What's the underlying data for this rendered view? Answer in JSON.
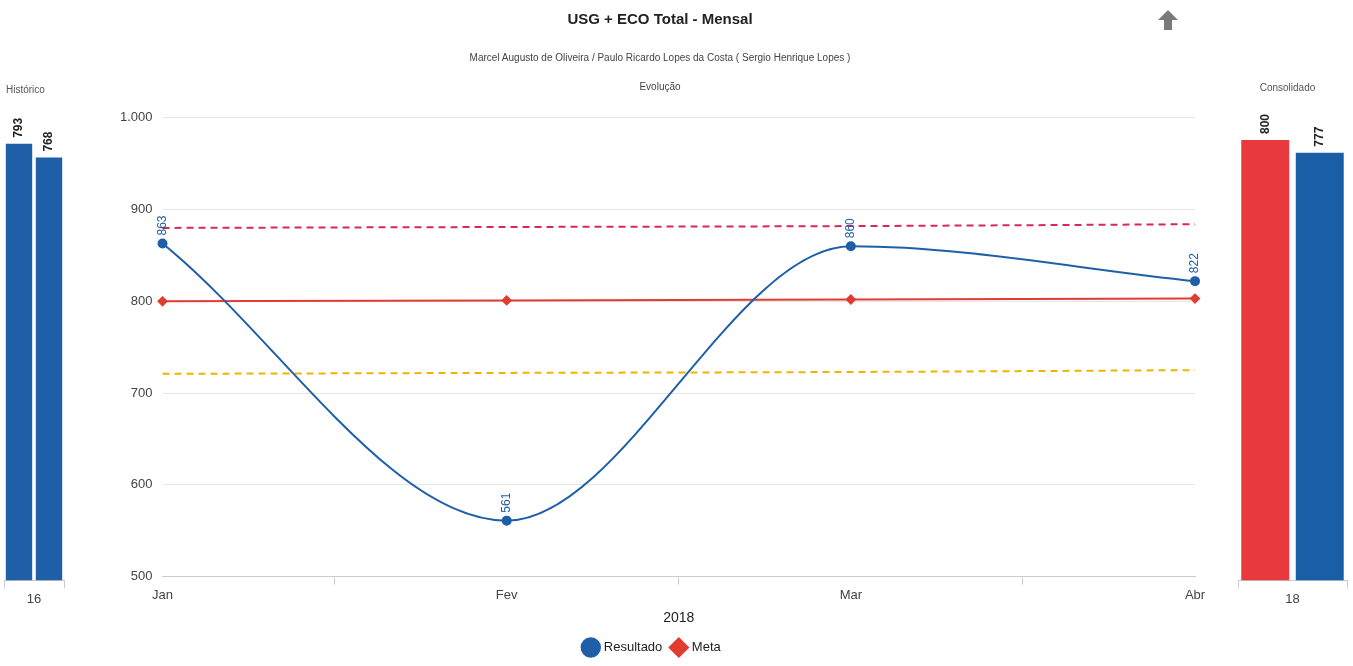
{
  "chart_data": [
    {
      "type": "bar",
      "title": "Histórico",
      "categories": [
        "16"
      ],
      "series": [
        {
          "color": "#1f5fa8",
          "values": [
            793
          ]
        },
        {
          "color": "#1f5fa8",
          "values": [
            768
          ]
        }
      ],
      "data_labels": true,
      "grid": false,
      "tick_labels": "x",
      "legend": false
    },
    {
      "type": "line",
      "title": "USG + ECO Total - Mensal",
      "subtitle": "Marcel Augusto de Oliveira / Paulo Ricardo Lopes da Costa ( Sergio Henrique Lopes )",
      "annotations": [
        "Evolução"
      ],
      "xlabel": "2018",
      "categories": [
        "Jan",
        "Fev",
        "Mar",
        "Abr"
      ],
      "series": [
        {
          "name": "Resultado",
          "color": "#1f5fa8",
          "values": [
            863,
            561,
            860,
            822
          ],
          "value_labels": [
            "863",
            "561",
            "860",
            "822"
          ],
          "marker": "circle"
        },
        {
          "name": "Meta",
          "color": "#e03c31",
          "values": [
            800,
            801,
            802,
            803
          ],
          "marker": "diamond"
        },
        {
          "color": "#d6285a",
          "values": [
            880,
            881,
            882,
            884
          ],
          "marker": "none",
          "line_style": "dashed"
        },
        {
          "color": "#f0b400",
          "values": [
            721,
            722,
            723,
            725
          ],
          "marker": "none",
          "line_style": "dashed"
        }
      ],
      "ylim": [
        500,
        1000
      ],
      "yticks": [
        500,
        600,
        700,
        800,
        900,
        {
          "value": 1000,
          "label": "1.000"
        }
      ],
      "grid": "y",
      "legend": "bottom"
    },
    {
      "type": "bar",
      "title": "Consolidado",
      "categories": [
        "18"
      ],
      "series": [
        {
          "color": "#e8393c",
          "values": [
            800
          ]
        },
        {
          "color": "#1a5ea8",
          "values": [
            777
          ]
        }
      ],
      "data_labels": true,
      "grid": false,
      "tick_labels": "x",
      "legend": false
    }
  ]
}
